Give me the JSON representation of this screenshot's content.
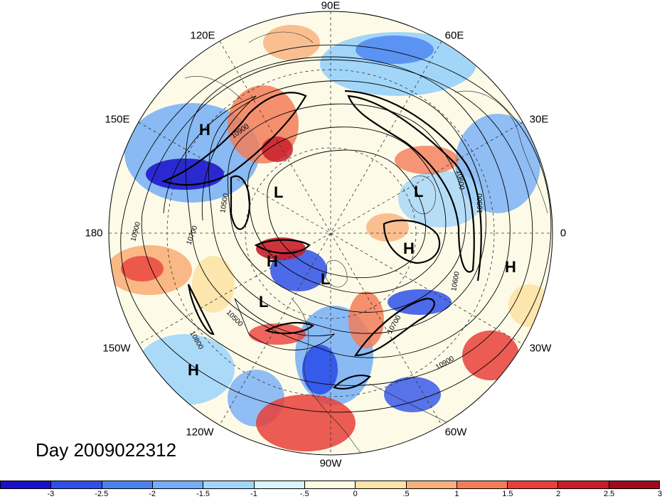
{
  "title": "Day 2009022312",
  "longitude_labels": {
    "lon_90e": "90E",
    "lon_60e": "60E",
    "lon_120e": "120E",
    "lon_30e": "30E",
    "lon_150e": "150E",
    "lon_0": "0",
    "lon_180": "180",
    "lon_30w": "30W",
    "lon_150w": "150W",
    "lon_60w": "60W",
    "lon_120w": "120W",
    "lon_90w": "90W"
  },
  "pressure_centers": [
    "H",
    "L",
    "L",
    "H",
    "H",
    "L",
    "L",
    "H",
    "H"
  ],
  "contour_labels": [
    "10900",
    "10500",
    "10700",
    "10500",
    "10800",
    "10900",
    "10600",
    "10600",
    "10700",
    "10900",
    "10500"
  ],
  "colorbar": {
    "colors": [
      "#1a0fc8",
      "#2e50e8",
      "#4a82f0",
      "#74aef6",
      "#a2d6f9",
      "#d8f4fc",
      "#fdfbe0",
      "#fde3a6",
      "#f8b07a",
      "#f27c58",
      "#e8403a",
      "#c81e2a",
      "#9e0a1e"
    ],
    "ticks": [
      "-3",
      "-2.5",
      "-2",
      "-1.5",
      "-1",
      "-.5",
      "0",
      ".5",
      "1",
      "1.5",
      "2",
      "2.5",
      "3"
    ]
  }
}
